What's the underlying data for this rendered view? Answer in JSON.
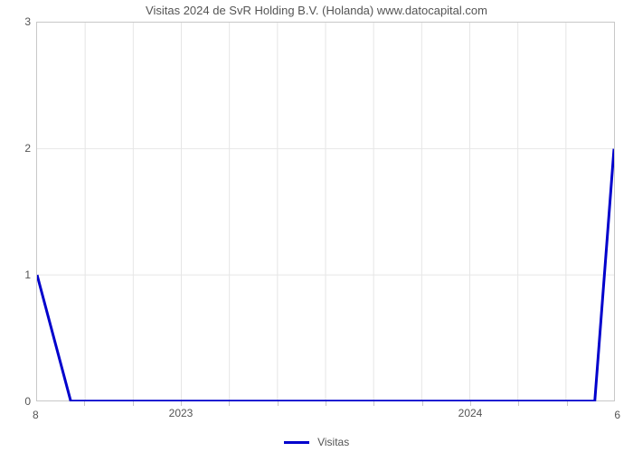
{
  "chart": {
    "type": "line",
    "title": "Visitas 2024 de SvR Holding B.V. (Holanda) www.datocapital.com",
    "title_fontsize": 13,
    "title_color": "#545454",
    "background_color": "#ffffff",
    "plot_border_color": "#c8c8c8",
    "grid_color": "#e6e6e6",
    "grid_width": 1,
    "yaxis": {
      "min": 0,
      "max": 3,
      "ticks": [
        0,
        1,
        2,
        3
      ],
      "tick_fontsize": 12,
      "tick_color": "#545454"
    },
    "xaxis": {
      "domain_index": {
        "min": 0,
        "max": 12
      },
      "major_labels": [
        {
          "text": "2023",
          "pos": 3
        },
        {
          "text": "2024",
          "pos": 9
        }
      ],
      "minor_tick_positions": [
        1,
        2,
        3,
        4,
        5,
        6,
        7,
        8,
        9,
        10,
        11
      ],
      "tick_fontsize": 12,
      "tick_color": "#545454"
    },
    "corner_left": "8",
    "corner_right": "6",
    "series": {
      "label": "Visitas",
      "color": "#0000cc",
      "line_width": 3,
      "x": [
        0,
        0.7,
        11.6,
        12
      ],
      "y": [
        1,
        0,
        0,
        2
      ]
    }
  }
}
